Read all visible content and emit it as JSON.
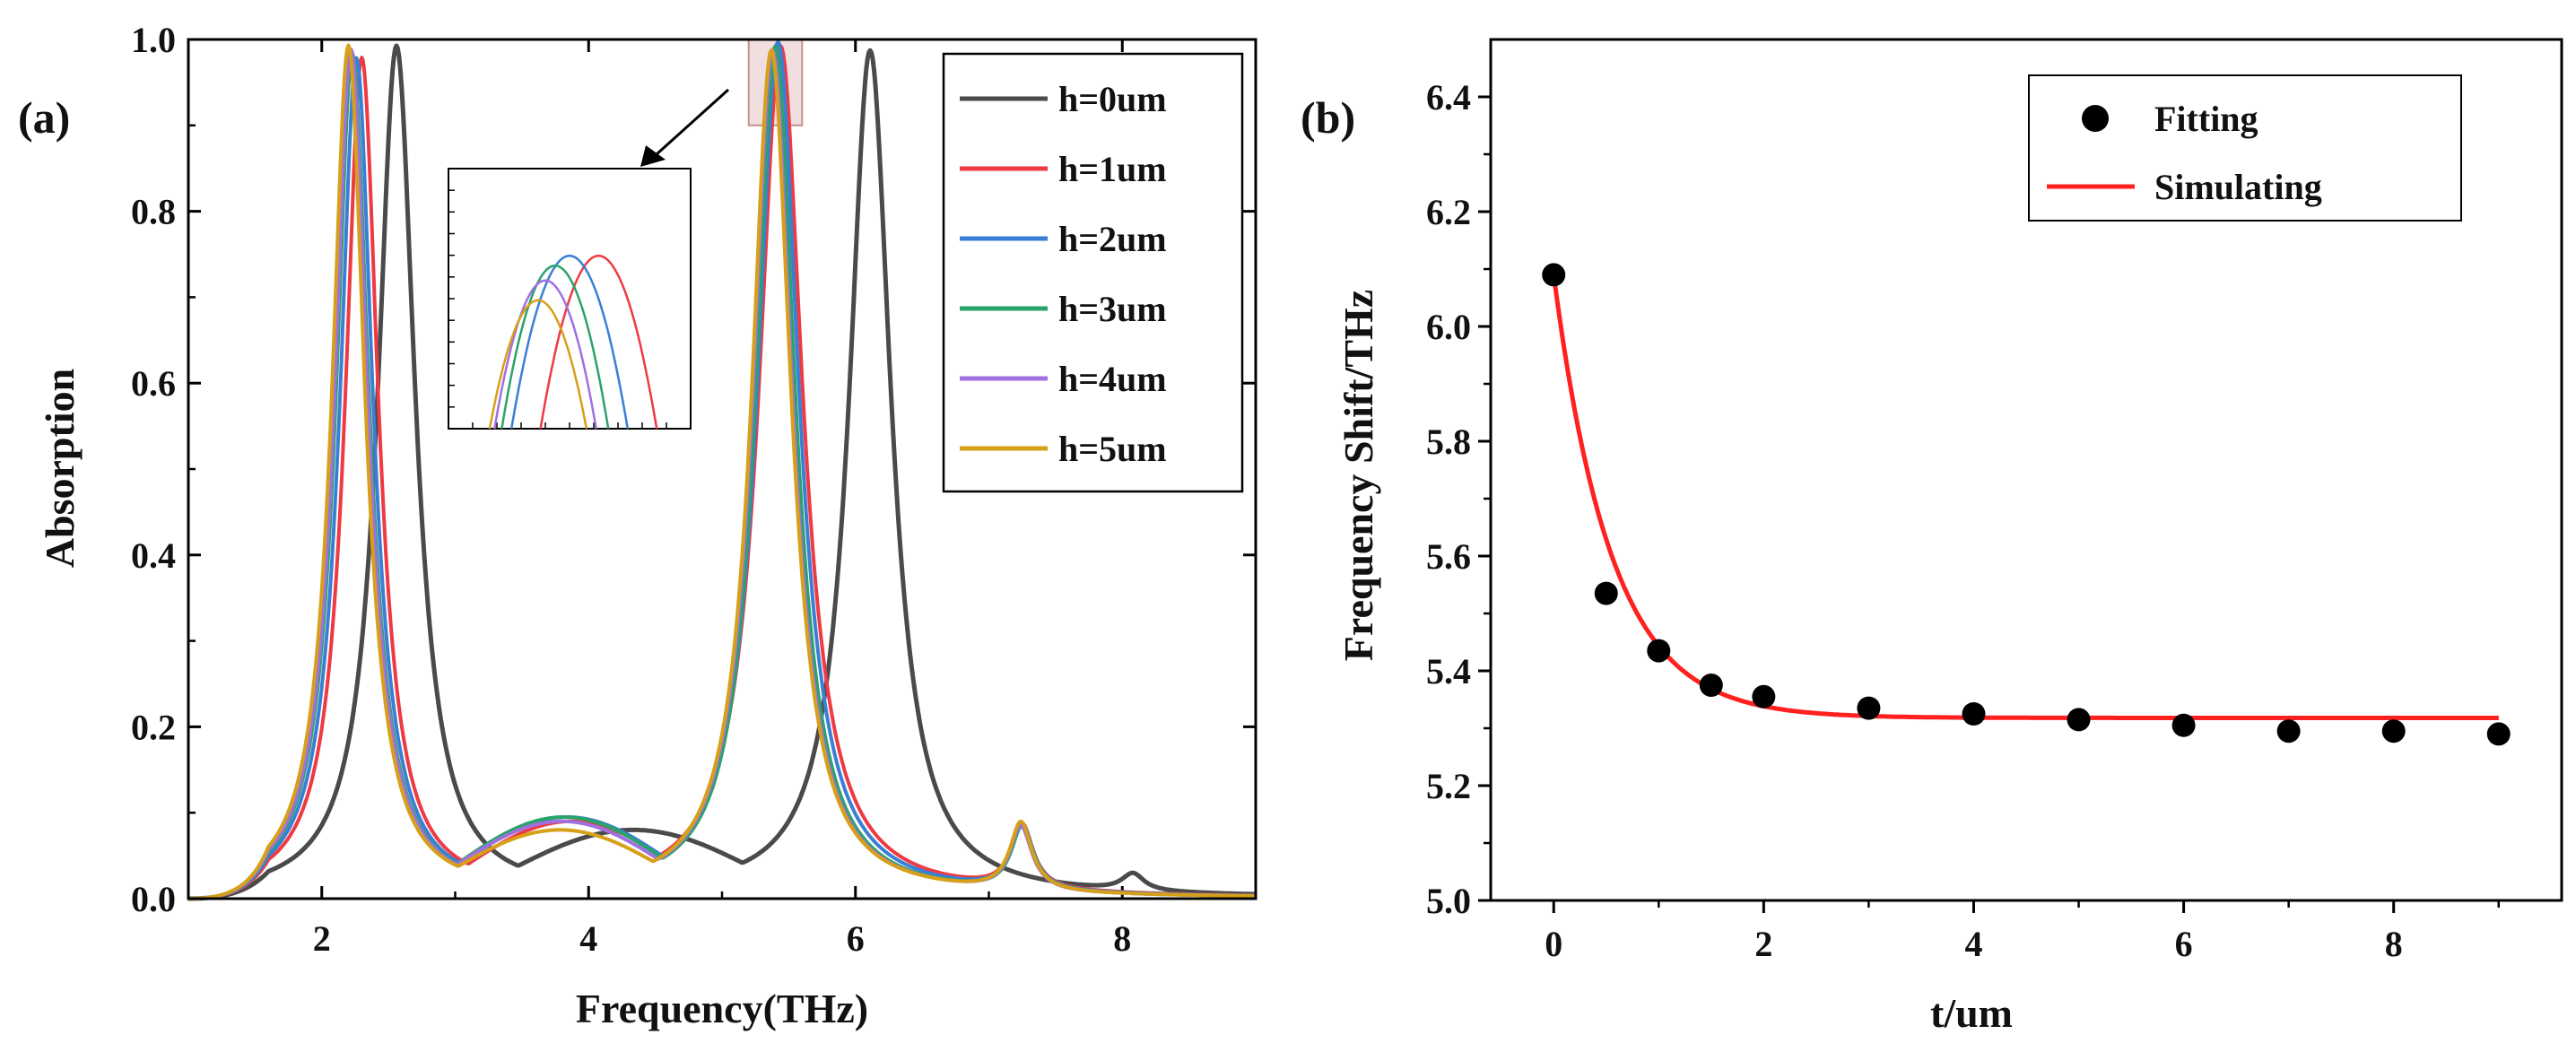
{
  "panels": {
    "a": {
      "label": "(a)"
    },
    "b": {
      "label": "(b)"
    }
  },
  "chart_data": [
    {
      "id": "a",
      "type": "line",
      "title": "",
      "xlabel": "Frequency(THz)",
      "ylabel": "Absorption",
      "xlim": [
        1,
        9
      ],
      "ylim": [
        0,
        1.0
      ],
      "xticks": [
        2,
        4,
        6,
        8
      ],
      "xtick_labels": [
        "2",
        "4",
        "6",
        "8"
      ],
      "yticks": [
        0,
        0.2,
        0.4,
        0.6,
        0.8,
        1.0
      ],
      "ytick_labels": [
        "0.0",
        "0.2",
        "0.4",
        "0.6",
        "0.8",
        "1.0"
      ],
      "legend_position": "top-right",
      "series": [
        {
          "name": "h=0um",
          "color": "#4a4a4a",
          "peaks": [
            [
              2.56,
              0.99,
              0.17
            ],
            [
              6.11,
              0.985,
              0.19
            ],
            [
              8.08,
              0.02,
              0.1
            ]
          ],
          "valley": [
            4.4,
            0.08
          ]
        },
        {
          "name": "h=1um",
          "color": "#ee3a43",
          "peaks": [
            [
              2.3,
              0.975,
              0.15
            ],
            [
              5.44,
              0.99,
              0.2
            ],
            [
              7.25,
              0.075,
              0.1
            ]
          ],
          "valley": [
            3.95,
            0.09
          ]
        },
        {
          "name": "h=2um",
          "color": "#3a7fd5",
          "peaks": [
            [
              2.26,
              0.975,
              0.15
            ],
            [
              5.42,
              0.995,
              0.19
            ],
            [
              7.25,
              0.075,
              0.1
            ]
          ],
          "valley": [
            3.85,
            0.095
          ]
        },
        {
          "name": "h=3um",
          "color": "#2aa36a",
          "peaks": [
            [
              2.23,
              0.98,
              0.15
            ],
            [
              5.4,
              0.99,
              0.18
            ],
            [
              7.25,
              0.075,
              0.1
            ]
          ],
          "valley": [
            3.8,
            0.095
          ]
        },
        {
          "name": "h=4um",
          "color": "#a070e0",
          "peaks": [
            [
              2.22,
              0.985,
              0.15
            ],
            [
              5.38,
              0.985,
              0.18
            ],
            [
              7.24,
              0.075,
              0.1
            ]
          ],
          "valley": [
            3.8,
            0.09
          ]
        },
        {
          "name": "h=5um",
          "color": "#d6a018",
          "peaks": [
            [
              2.2,
              0.99,
              0.15
            ],
            [
              5.37,
              0.985,
              0.18
            ],
            [
              7.24,
              0.08,
              0.1
            ]
          ],
          "valley": [
            4.0,
            0.08
          ]
        }
      ],
      "zoom_region": {
        "x": [
          5.2,
          5.6
        ],
        "y": [
          0.9,
          1.0
        ]
      },
      "inset_series": [
        {
          "name": "h=1um",
          "color": "#ee3a43",
          "peak": 0.62,
          "halfwidth": 0.24,
          "height": 0.7
        },
        {
          "name": "h=2um",
          "color": "#3a7fd5",
          "peak": 0.5,
          "halfwidth": 0.24,
          "height": 0.7
        },
        {
          "name": "h=3um",
          "color": "#2aa36a",
          "peak": 0.44,
          "halfwidth": 0.22,
          "height": 0.66
        },
        {
          "name": "h=4um",
          "color": "#a070e0",
          "peak": 0.4,
          "halfwidth": 0.21,
          "height": 0.6
        },
        {
          "name": "h=5um",
          "color": "#d6a018",
          "peak": 0.37,
          "halfwidth": 0.2,
          "height": 0.52
        }
      ]
    },
    {
      "id": "b",
      "type": "scatter",
      "title": "",
      "xlabel": "t/um",
      "ylabel": "Frequency Shift/THz",
      "xlim": [
        -0.6,
        9.6
      ],
      "ylim": [
        5.0,
        6.5
      ],
      "xticks": [
        0,
        2,
        4,
        6,
        8
      ],
      "xtick_labels": [
        "0",
        "2",
        "4",
        "6",
        "8"
      ],
      "yticks": [
        5.0,
        5.2,
        5.4,
        5.6,
        5.8,
        6.0,
        6.2,
        6.4
      ],
      "ytick_labels": [
        "5.0",
        "5.2",
        "5.4",
        "5.6",
        "5.8",
        "6.0",
        "6.2",
        "6.4"
      ],
      "legend_position": "top-right",
      "series": [
        {
          "name": "Fitting",
          "kind": "markers",
          "color": "#000000",
          "x": [
            0,
            0.5,
            1,
            1.5,
            2,
            3,
            4,
            5,
            6,
            7,
            8,
            9
          ],
          "y": [
            6.09,
            5.535,
            5.435,
            5.375,
            5.355,
            5.335,
            5.325,
            5.315,
            5.305,
            5.295,
            5.295,
            5.29
          ]
        },
        {
          "name": "Simulating",
          "kind": "line",
          "color": "#ff2020",
          "model": "exponential",
          "y0": 5.318,
          "A": 0.772,
          "tau": 0.55,
          "x_range": [
            0,
            9
          ]
        }
      ]
    }
  ]
}
